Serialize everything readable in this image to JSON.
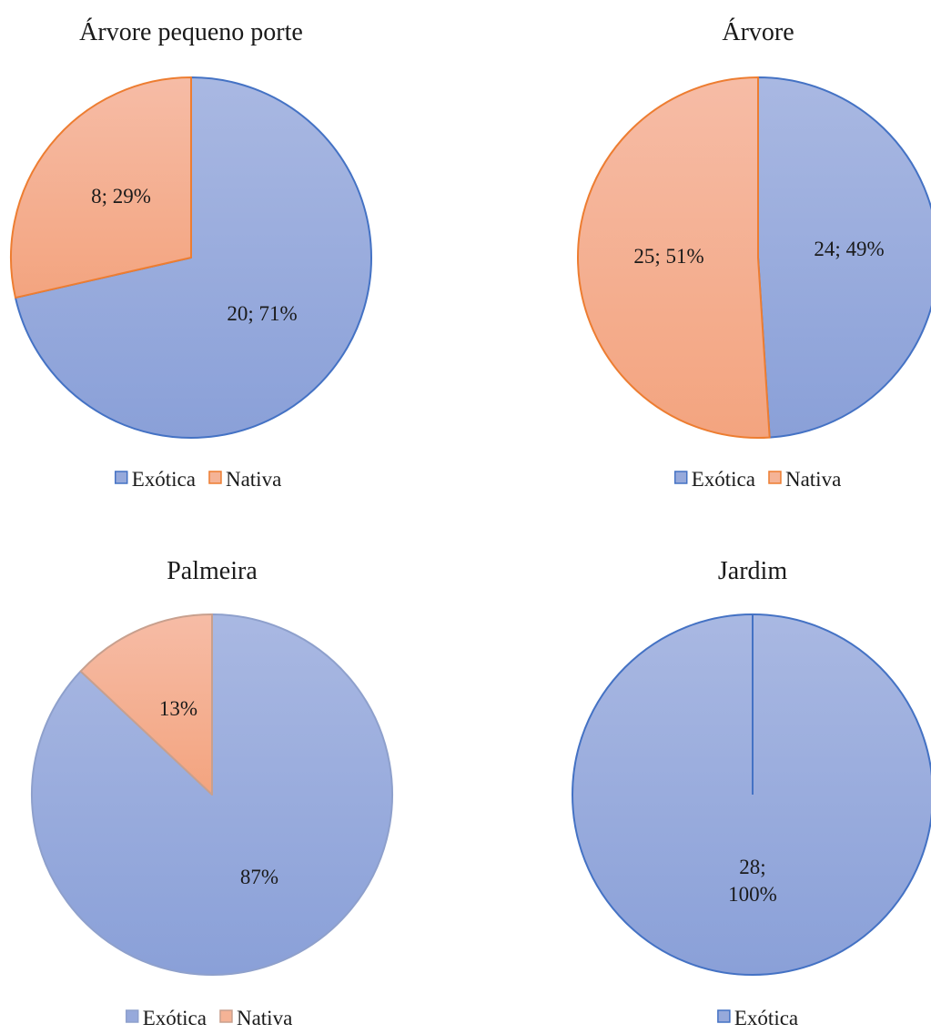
{
  "colors": {
    "exotica_fill": "#96a9db",
    "exotica_stroke": "#4472c4",
    "nativa_fill": "#f5b396",
    "nativa_stroke": "#ed7d31",
    "palmeira_exotica_stroke": "#8ea0cc",
    "palmeira_nativa_stroke": "#c8a08e"
  },
  "chart_data": [
    {
      "type": "pie",
      "title": "Árvore pequeno porte",
      "categories": [
        "Exótica",
        "Nativa"
      ],
      "values": [
        20,
        8
      ],
      "data_labels": [
        "20; 71%",
        "8; 29%"
      ],
      "legend": [
        "Exótica",
        "Nativa"
      ],
      "legend_position": "bottom"
    },
    {
      "type": "pie",
      "title": "Árvore",
      "categories": [
        "Exótica",
        "Nativa"
      ],
      "values": [
        24,
        25
      ],
      "data_labels": [
        "24; 49%",
        "25; 51%"
      ],
      "legend": [
        "Exótica",
        "Nativa"
      ],
      "legend_position": "bottom"
    },
    {
      "type": "pie",
      "title": "Palmeira",
      "categories": [
        "Exótica",
        "Nativa"
      ],
      "values": [
        87,
        13
      ],
      "data_labels": [
        "87%",
        "13%"
      ],
      "legend": [
        "Exótica",
        "Nativa"
      ],
      "legend_position": "bottom"
    },
    {
      "type": "pie",
      "title": "Jardim",
      "categories": [
        "Exótica"
      ],
      "values": [
        28
      ],
      "data_labels": [
        "28;\n100%"
      ],
      "legend": [
        "Exótica"
      ],
      "legend_position": "bottom"
    }
  ]
}
